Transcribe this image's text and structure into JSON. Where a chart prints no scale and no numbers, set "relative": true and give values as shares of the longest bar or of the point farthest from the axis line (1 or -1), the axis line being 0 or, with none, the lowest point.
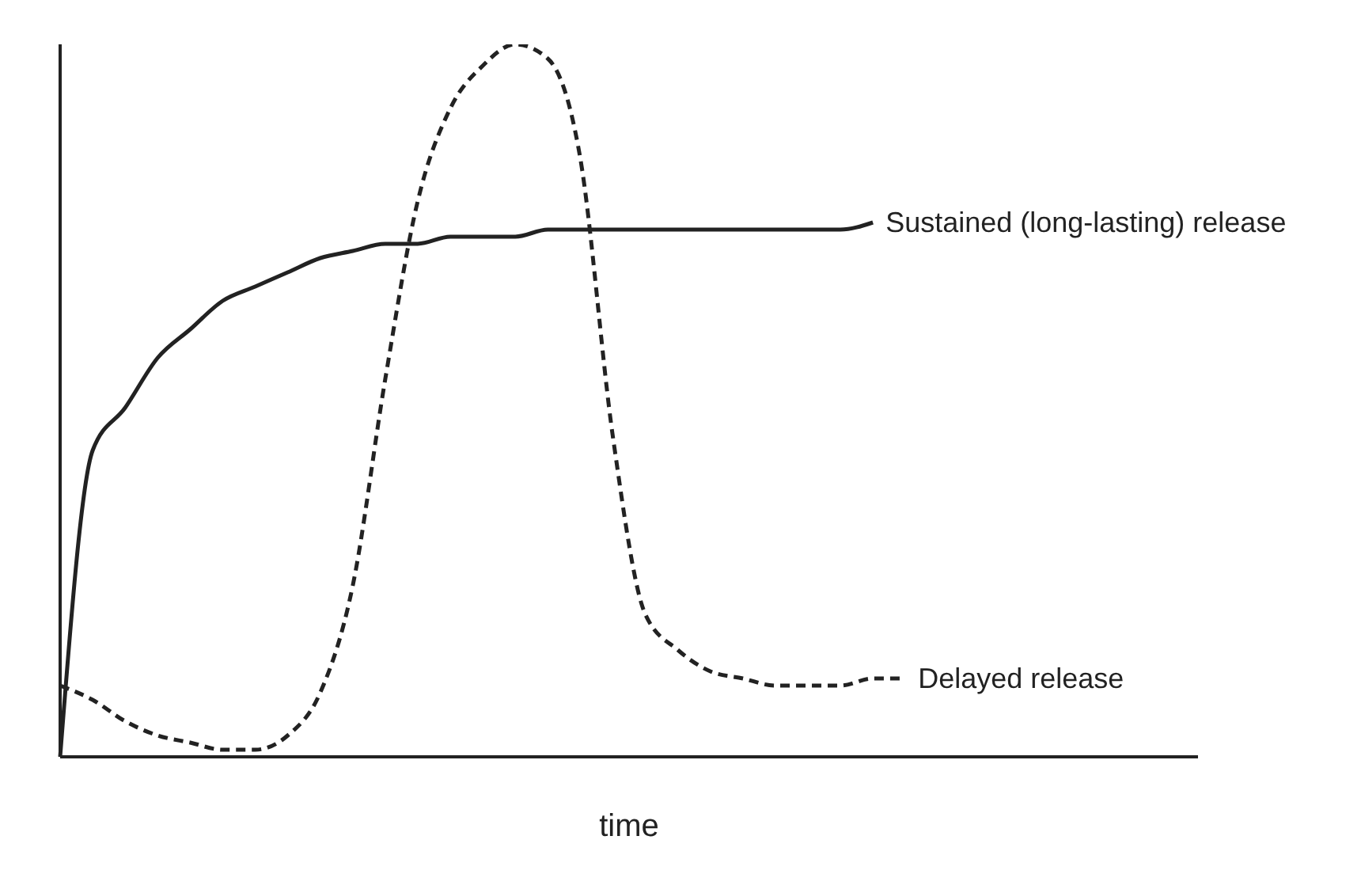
{
  "chart_data": {
    "type": "line",
    "relative": true,
    "xlabel": "time",
    "legend": false,
    "grid": false,
    "marker": "none",
    "categories": [
      null,
      null,
      null,
      null,
      null,
      null,
      null,
      null,
      null,
      null,
      null,
      null,
      null,
      null,
      null,
      null,
      null,
      null,
      null,
      null,
      null,
      null,
      null,
      null,
      null,
      null,
      null,
      null,
      null,
      null,
      null,
      null,
      null,
      null,
      null,
      null
    ],
    "series": [
      {
        "name": "Sustained (long-lasting) release",
        "color": "#222222",
        "line_style": "solid",
        "values": [
          0,
          0.43,
          0.49,
          0.56,
          0.6,
          0.64,
          0.66,
          0.68,
          0.7,
          0.71,
          0.72,
          0.72,
          0.73,
          0.73,
          0.73,
          0.74,
          0.74,
          0.74,
          0.74,
          0.74,
          0.74,
          0.74,
          0.74,
          0.74,
          0.74,
          0.75,
          null,
          null,
          null,
          null,
          null,
          null,
          null,
          null,
          null,
          null
        ]
      },
      {
        "name": "Delayed release",
        "color": "#222222",
        "line_style": "dashed",
        "values": [
          0.1,
          0.08,
          0.05,
          0.03,
          0.02,
          0.01,
          0.01,
          0.03,
          0.09,
          0.24,
          0.53,
          0.78,
          0.91,
          0.97,
          1,
          0.98,
          0.84,
          0.45,
          0.2,
          0.15,
          0.12,
          0.11,
          0.1,
          0.1,
          0.1,
          0.11,
          0.11,
          null,
          null,
          null,
          null,
          null,
          null,
          null,
          null,
          null
        ]
      }
    ]
  }
}
